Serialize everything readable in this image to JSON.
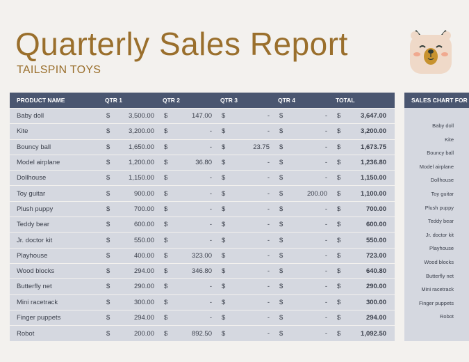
{
  "header": {
    "title": "Quarterly Sales Report",
    "subtitle": "TAILSPIN TOYS"
  },
  "table": {
    "headers": [
      "PRODUCT NAME",
      "QTR 1",
      "QTR 2",
      "QTR 3",
      "QTR 4",
      "TOTAL"
    ],
    "currency": "$",
    "rows": [
      {
        "name": "Baby doll",
        "q1": "3,500.00",
        "q2": "147.00",
        "q3": "-",
        "q4": "-",
        "total": "3,647.00"
      },
      {
        "name": "Kite",
        "q1": "3,200.00",
        "q2": "-",
        "q3": "-",
        "q4": "-",
        "total": "3,200.00"
      },
      {
        "name": "Bouncy ball",
        "q1": "1,650.00",
        "q2": "-",
        "q3": "23.75",
        "q4": "-",
        "total": "1,673.75"
      },
      {
        "name": "Model airplane",
        "q1": "1,200.00",
        "q2": "36.80",
        "q3": "-",
        "q4": "-",
        "total": "1,236.80"
      },
      {
        "name": "Dollhouse",
        "q1": "1,150.00",
        "q2": "-",
        "q3": "-",
        "q4": "-",
        "total": "1,150.00"
      },
      {
        "name": "Toy guitar",
        "q1": "900.00",
        "q2": "-",
        "q3": "-",
        "q4": "200.00",
        "total": "1,100.00"
      },
      {
        "name": "Plush puppy",
        "q1": "700.00",
        "q2": "-",
        "q3": "-",
        "q4": "-",
        "total": "700.00"
      },
      {
        "name": "Teddy bear",
        "q1": "600.00",
        "q2": "-",
        "q3": "-",
        "q4": "-",
        "total": "600.00"
      },
      {
        "name": "Jr. doctor kit",
        "q1": "550.00",
        "q2": "-",
        "q3": "-",
        "q4": "-",
        "total": "550.00"
      },
      {
        "name": "Playhouse",
        "q1": "400.00",
        "q2": "323.00",
        "q3": "-",
        "q4": "-",
        "total": "723.00"
      },
      {
        "name": "Wood blocks",
        "q1": "294.00",
        "q2": "346.80",
        "q3": "-",
        "q4": "-",
        "total": "640.80"
      },
      {
        "name": "Butterfly net",
        "q1": "290.00",
        "q2": "-",
        "q3": "-",
        "q4": "-",
        "total": "290.00"
      },
      {
        "name": "Mini racetrack",
        "q1": "300.00",
        "q2": "-",
        "q3": "-",
        "q4": "-",
        "total": "300.00"
      },
      {
        "name": "Finger puppets",
        "q1": "294.00",
        "q2": "-",
        "q3": "-",
        "q4": "-",
        "total": "294.00"
      },
      {
        "name": "Robot",
        "q1": "200.00",
        "q2": "892.50",
        "q3": "-",
        "q4": "-",
        "total": "1,092.50"
      }
    ]
  },
  "side_chart": {
    "title": "SALES CHART FOR",
    "labels": [
      "Baby doll",
      "Kite",
      "Bouncy ball",
      "Model airplane",
      "Dollhouse",
      "Toy guitar",
      "Plush puppy",
      "Teddy bear",
      "Jr. doctor kit",
      "Playhouse",
      "Wood blocks",
      "Butterfly net",
      "Mini racetrack",
      "Finger puppets",
      "Robot"
    ]
  },
  "colors": {
    "title": "#9a6f2c",
    "header_bg": "#4a5670",
    "row_bg": "#d5d8e0",
    "page_bg": "#f3f1ee"
  },
  "icons": {
    "mascot": "bear-icon"
  }
}
